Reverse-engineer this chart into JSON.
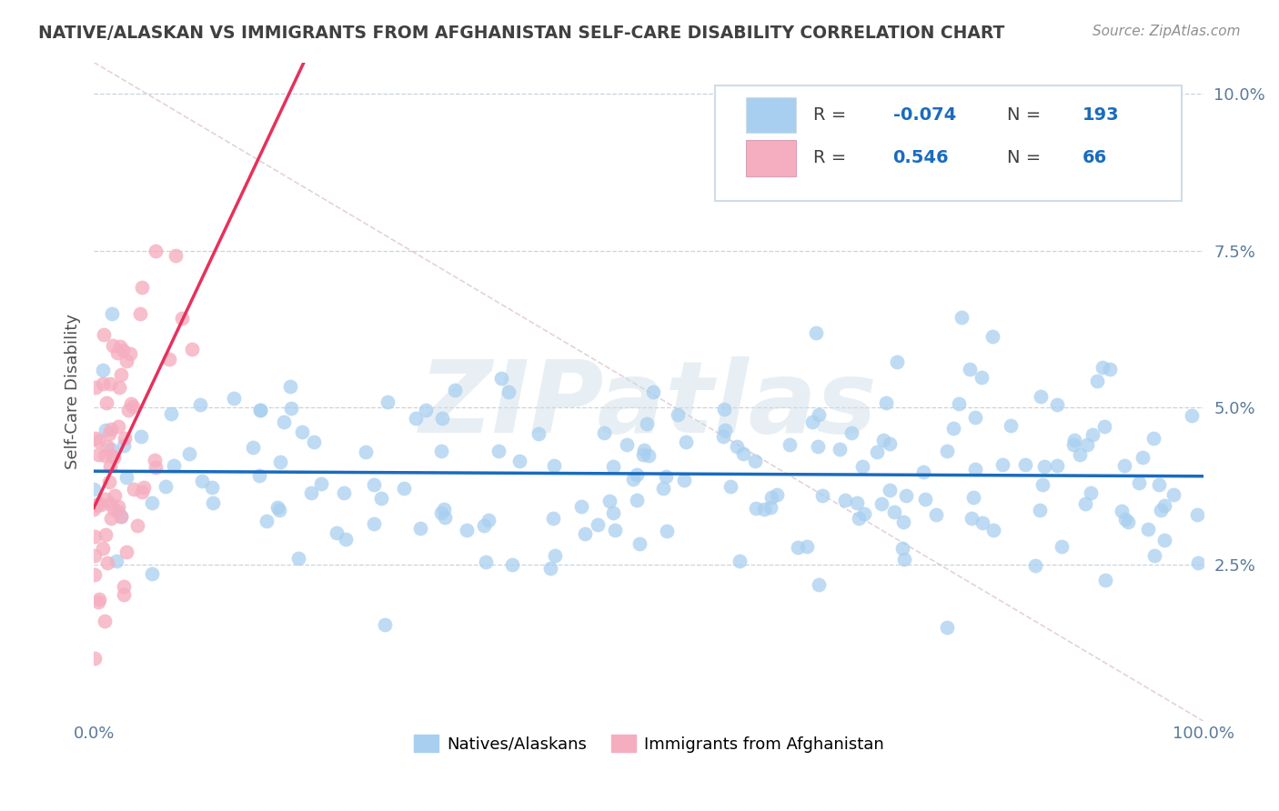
{
  "title": "NATIVE/ALASKAN VS IMMIGRANTS FROM AFGHANISTAN SELF-CARE DISABILITY CORRELATION CHART",
  "source": "Source: ZipAtlas.com",
  "ylabel": "Self-Care Disability",
  "yticks": [
    0.0,
    0.025,
    0.05,
    0.075,
    0.1
  ],
  "ytick_labels": [
    "",
    "2.5%",
    "5.0%",
    "7.5%",
    "10.0%"
  ],
  "xlim": [
    0.0,
    1.0
  ],
  "ylim": [
    0.0,
    0.105
  ],
  "blue_R": -0.074,
  "blue_N": 193,
  "pink_R": 0.546,
  "pink_N": 66,
  "blue_color": "#a8cff0",
  "pink_color": "#f5aec0",
  "blue_line_color": "#1a6bbf",
  "pink_line_color": "#e8305a",
  "diag_line_color": "#d8c0c8",
  "watermark": "ZIPatlas",
  "watermark_color": "#ccdde8",
  "background_color": "#ffffff",
  "legend_value_color": "#1a6bbf",
  "title_color": "#404040",
  "source_color": "#909090",
  "grid_color": "#c8d4dc",
  "tick_label_color": "#5a7a9a",
  "legend_box_color": "#d0dce6"
}
